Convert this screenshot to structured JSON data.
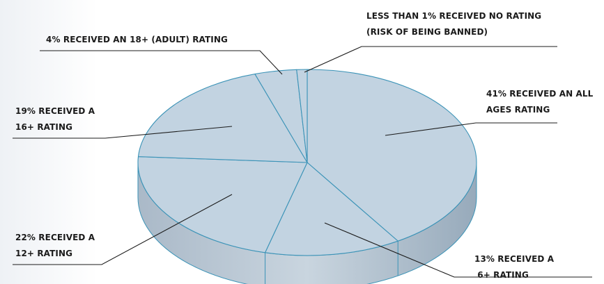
{
  "chart_data": {
    "type": "pie",
    "title": "",
    "style": "3d",
    "colors": {
      "top": "#c2d3e1",
      "side": "#97aabb",
      "edge": "#3b93b7",
      "leader": "#1b1b1b"
    },
    "slices": [
      {
        "value": 41,
        "lines": [
          "41%  RECEIVED AN ALL",
          "AGES RATING"
        ]
      },
      {
        "value": 13,
        "lines": [
          "13% RECEIVED A",
          " 6+ RATING"
        ]
      },
      {
        "value": 22,
        "lines": [
          "22% RECEIVED A",
          "12+ RATING"
        ]
      },
      {
        "value": 19,
        "lines": [
          "19% RECEIVED A",
          "16+ RATING"
        ]
      },
      {
        "value": 4,
        "lines": [
          "4% RECEIVED AN 18+ (ADULT) RATING"
        ]
      },
      {
        "value": 1,
        "lines": [
          "LESS THAN 1% RECEIVED NO RATING",
          "(RISK OF BEING BANNED)"
        ]
      }
    ]
  }
}
